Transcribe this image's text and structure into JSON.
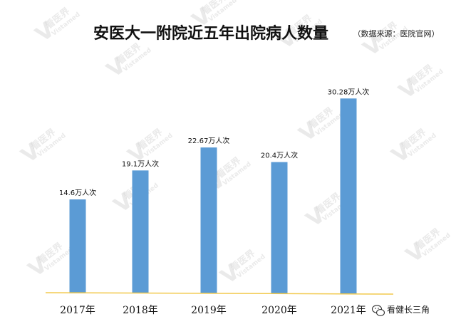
{
  "chart_data": {
    "type": "bar",
    "title": "安医大一附院近五年出院病人数量",
    "subtitle": "（数据来源：医院官网）",
    "categories": [
      "2017年",
      "2018年",
      "2019年",
      "2020年",
      "2021年"
    ],
    "values": [
      14.6,
      19.1,
      22.67,
      20.4,
      30.28
    ],
    "data_labels": [
      "14.6万人次",
      "19.1万人次",
      "22.67万人次",
      "20.4万人次",
      "30.28万人次"
    ],
    "ylim": [
      0,
      33
    ],
    "grid": false,
    "legend": "none",
    "colors": {
      "bar": "#5b9bd5",
      "baseline": "#f2c94c"
    }
  },
  "watermark": {
    "logo_text": "看医界",
    "logo_sub": "Vistamed"
  },
  "footer": {
    "account": "看健长三角",
    "icon": "wechat-icon"
  }
}
